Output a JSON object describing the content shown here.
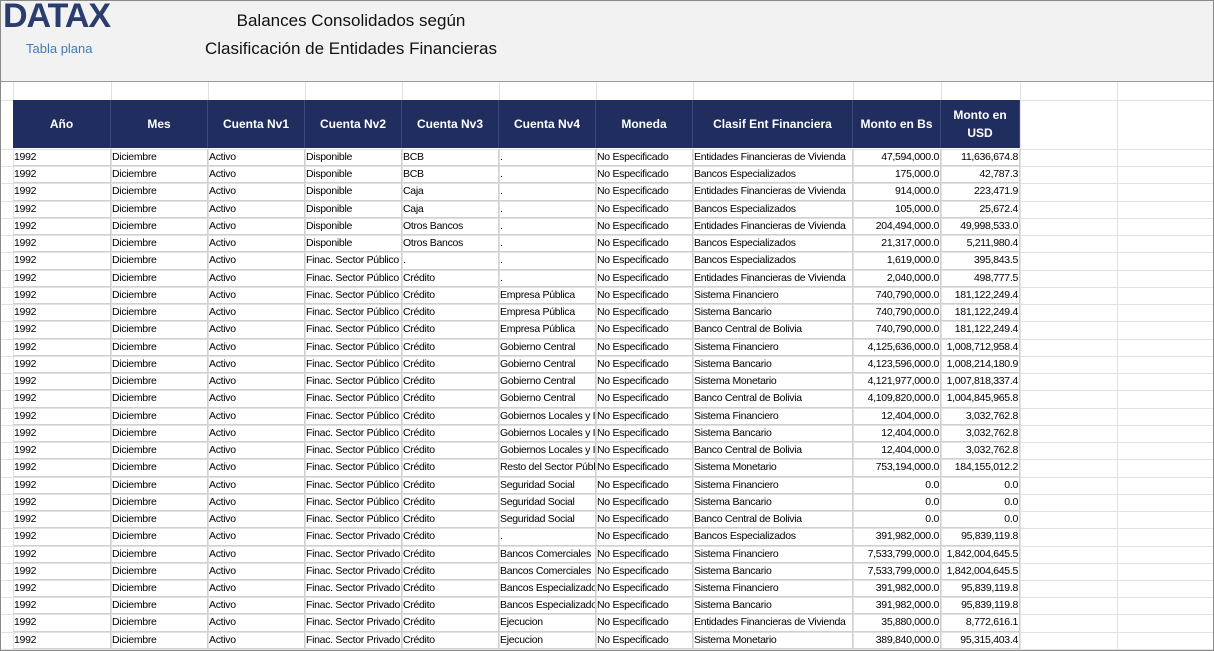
{
  "header": {
    "logo": "DATAX",
    "subtitle": "Tabla plana",
    "title": [
      "Balances Consolidados según",
      "Clasificación de Entidades Financieras"
    ]
  },
  "table": {
    "columns": [
      "Año",
      "Mes",
      "Cuenta Nv1",
      "Cuenta Nv2",
      "Cuenta Nv3",
      "Cuenta Nv4",
      "Moneda",
      "Clasif Ent Financiera",
      "Monto en Bs",
      "Monto en USD"
    ],
    "rows": [
      [
        "1992",
        "Diciembre",
        "Activo",
        "Disponible",
        "BCB",
        ".",
        "No Especificado",
        "Entidades Financieras de Vivienda",
        "47,594,000.0",
        "11,636,674.8"
      ],
      [
        "1992",
        "Diciembre",
        "Activo",
        "Disponible",
        "BCB",
        ".",
        "No Especificado",
        "Bancos Especializados",
        "175,000.0",
        "42,787.3"
      ],
      [
        "1992",
        "Diciembre",
        "Activo",
        "Disponible",
        "Caja",
        ".",
        "No Especificado",
        "Entidades Financieras de Vivienda",
        "914,000.0",
        "223,471.9"
      ],
      [
        "1992",
        "Diciembre",
        "Activo",
        "Disponible",
        "Caja",
        ".",
        "No Especificado",
        "Bancos Especializados",
        "105,000.0",
        "25,672.4"
      ],
      [
        "1992",
        "Diciembre",
        "Activo",
        "Disponible",
        "Otros Bancos",
        ".",
        "No Especificado",
        "Entidades Financieras de Vivienda",
        "204,494,000.0",
        "49,998,533.0"
      ],
      [
        "1992",
        "Diciembre",
        "Activo",
        "Disponible",
        "Otros Bancos",
        ".",
        "No Especificado",
        "Bancos Especializados",
        "21,317,000.0",
        "5,211,980.4"
      ],
      [
        "1992",
        "Diciembre",
        "Activo",
        "Finac. Sector Público",
        ".",
        ".",
        "No Especificado",
        "Bancos Especializados",
        "1,619,000.0",
        "395,843.5"
      ],
      [
        "1992",
        "Diciembre",
        "Activo",
        "Finac. Sector Público",
        "Crédito",
        ".",
        "No Especificado",
        "Entidades Financieras de Vivienda",
        "2,040,000.0",
        "498,777.5"
      ],
      [
        "1992",
        "Diciembre",
        "Activo",
        "Finac. Sector Público",
        "Crédito",
        "Empresa Pública",
        "No Especificado",
        "Sistema Financiero",
        "740,790,000.0",
        "181,122,249.4"
      ],
      [
        "1992",
        "Diciembre",
        "Activo",
        "Finac. Sector Público",
        "Crédito",
        "Empresa Pública",
        "No Especificado",
        "Sistema Bancario",
        "740,790,000.0",
        "181,122,249.4"
      ],
      [
        "1992",
        "Diciembre",
        "Activo",
        "Finac. Sector Público",
        "Crédito",
        "Empresa Pública",
        "No Especificado",
        "Banco Central de Bolivia",
        "740,790,000.0",
        "181,122,249.4"
      ],
      [
        "1992",
        "Diciembre",
        "Activo",
        "Finac. Sector Público",
        "Crédito",
        "Gobierno Central",
        "No Especificado",
        "Sistema Financiero",
        "4,125,636,000.0",
        "1,008,712,958.4"
      ],
      [
        "1992",
        "Diciembre",
        "Activo",
        "Finac. Sector Público",
        "Crédito",
        "Gobierno Central",
        "No Especificado",
        "Sistema Bancario",
        "4,123,596,000.0",
        "1,008,214,180.9"
      ],
      [
        "1992",
        "Diciembre",
        "Activo",
        "Finac. Sector Público",
        "Crédito",
        "Gobierno Central",
        "No Especificado",
        "Sistema Monetario",
        "4,121,977,000.0",
        "1,007,818,337.4"
      ],
      [
        "1992",
        "Diciembre",
        "Activo",
        "Finac. Sector Público",
        "Crédito",
        "Gobierno Central",
        "No Especificado",
        "Banco Central de Bolivia",
        "4,109,820,000.0",
        "1,004,845,965.8"
      ],
      [
        "1992",
        "Diciembre",
        "Activo",
        "Finac. Sector Público",
        "Crédito",
        "Gobiernos Locales y I",
        "No Especificado",
        "Sistema Financiero",
        "12,404,000.0",
        "3,032,762.8"
      ],
      [
        "1992",
        "Diciembre",
        "Activo",
        "Finac. Sector Público",
        "Crédito",
        "Gobiernos Locales y I",
        "No Especificado",
        "Sistema Bancario",
        "12,404,000.0",
        "3,032,762.8"
      ],
      [
        "1992",
        "Diciembre",
        "Activo",
        "Finac. Sector Público",
        "Crédito",
        "Gobiernos Locales y I",
        "No Especificado",
        "Banco Central de Bolivia",
        "12,404,000.0",
        "3,032,762.8"
      ],
      [
        "1992",
        "Diciembre",
        "Activo",
        "Finac. Sector Público",
        "Crédito",
        "Resto del Sector Públ",
        "No Especificado",
        "Sistema Monetario",
        "753,194,000.0",
        "184,155,012.2"
      ],
      [
        "1992",
        "Diciembre",
        "Activo",
        "Finac. Sector Público",
        "Crédito",
        "Seguridad Social",
        "No Especificado",
        "Sistema Financiero",
        "0.0",
        "0.0"
      ],
      [
        "1992",
        "Diciembre",
        "Activo",
        "Finac. Sector Público",
        "Crédito",
        "Seguridad Social",
        "No Especificado",
        "Sistema Bancario",
        "0.0",
        "0.0"
      ],
      [
        "1992",
        "Diciembre",
        "Activo",
        "Finac. Sector Público",
        "Crédito",
        "Seguridad Social",
        "No Especificado",
        "Banco Central de Bolivia",
        "0.0",
        "0.0"
      ],
      [
        "1992",
        "Diciembre",
        "Activo",
        "Finac. Sector Privado",
        "Crédito",
        ".",
        "No Especificado",
        "Bancos Especializados",
        "391,982,000.0",
        "95,839,119.8"
      ],
      [
        "1992",
        "Diciembre",
        "Activo",
        "Finac. Sector Privado",
        "Crédito",
        "Bancos Comerciales",
        "No Especificado",
        "Sistema Financiero",
        "7,533,799,000.0",
        "1,842,004,645.5"
      ],
      [
        "1992",
        "Diciembre",
        "Activo",
        "Finac. Sector Privado",
        "Crédito",
        "Bancos Comerciales",
        "No Especificado",
        "Sistema Bancario",
        "7,533,799,000.0",
        "1,842,004,645.5"
      ],
      [
        "1992",
        "Diciembre",
        "Activo",
        "Finac. Sector Privado",
        "Crédito",
        "Bancos Especializado",
        "No Especificado",
        "Sistema Financiero",
        "391,982,000.0",
        "95,839,119.8"
      ],
      [
        "1992",
        "Diciembre",
        "Activo",
        "Finac. Sector Privado",
        "Crédito",
        "Bancos Especializado",
        "No Especificado",
        "Sistema Bancario",
        "391,982,000.0",
        "95,839,119.8"
      ],
      [
        "1992",
        "Diciembre",
        "Activo",
        "Finac. Sector Privado",
        "Crédito",
        "Ejecucion",
        "No Especificado",
        "Entidades Financieras de Vivienda",
        "35,880,000.0",
        "8,772,616.1"
      ],
      [
        "1992",
        "Diciembre",
        "Activo",
        "Finac. Sector Privado",
        "Crédito",
        "Ejecucion",
        "No Especificado",
        "Sistema Monetario",
        "389,840,000.0",
        "95,315,403.4"
      ]
    ]
  }
}
